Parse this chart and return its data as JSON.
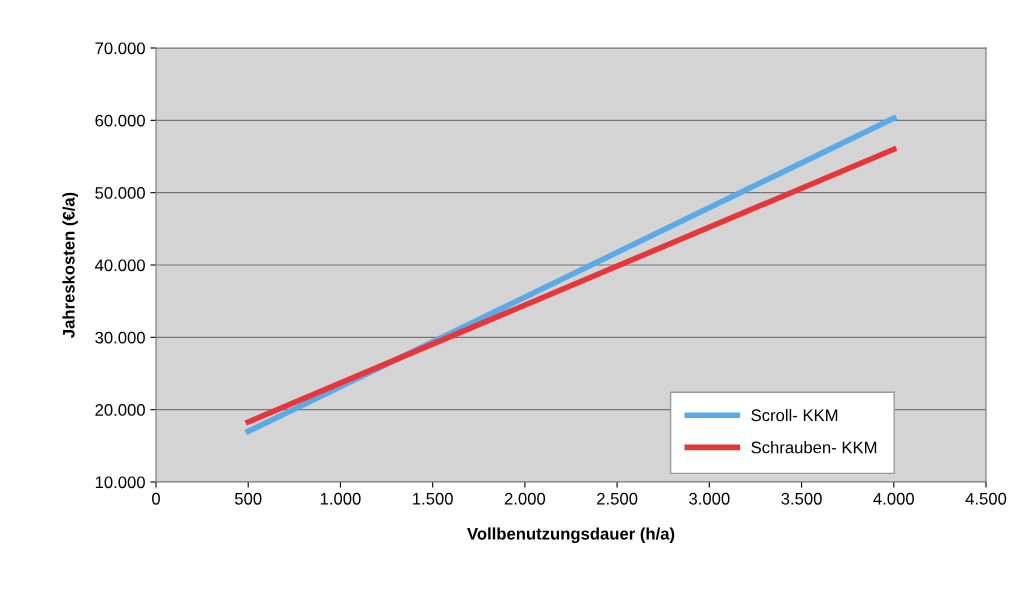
{
  "chart_data": {
    "type": "line",
    "xlabel": "Vollbenutzungsdauer (h/a)",
    "ylabel": "Jahreskosten (€/a)",
    "x": [
      500,
      4000
    ],
    "series": [
      {
        "name": "Scroll- KKM",
        "color": "#5aaae8",
        "values": [
          17000,
          60300
        ]
      },
      {
        "name": "Schrauben- KKM",
        "color": "#e8353a",
        "values": [
          18300,
          56000
        ]
      }
    ],
    "xlim": [
      0,
      4500
    ],
    "xticks": [
      0,
      500,
      {
        "value": 1000,
        "label": "1.000"
      },
      {
        "value": 1500,
        "label": "1.500"
      },
      {
        "value": 2000,
        "label": "2.000"
      },
      {
        "value": 2500,
        "label": "2.500"
      },
      {
        "value": 3000,
        "label": "3.000"
      },
      {
        "value": 3500,
        "label": "3.500"
      },
      {
        "value": 4000,
        "label": "4.000"
      },
      {
        "value": 4500,
        "label": "4.500"
      }
    ],
    "ylim": [
      10000,
      70000
    ],
    "yticks": [
      {
        "value": 10000,
        "label": "10.000"
      },
      {
        "value": 20000,
        "label": "20.000"
      },
      {
        "value": 30000,
        "label": "30.000"
      },
      {
        "value": 40000,
        "label": "40.000"
      },
      {
        "value": 50000,
        "label": "50.000"
      },
      {
        "value": 60000,
        "label": "60.000"
      },
      {
        "value": 70000,
        "label": "70.000"
      }
    ],
    "grid": "y",
    "legend": "bottom right",
    "marker": "none",
    "line_style": "solid"
  }
}
